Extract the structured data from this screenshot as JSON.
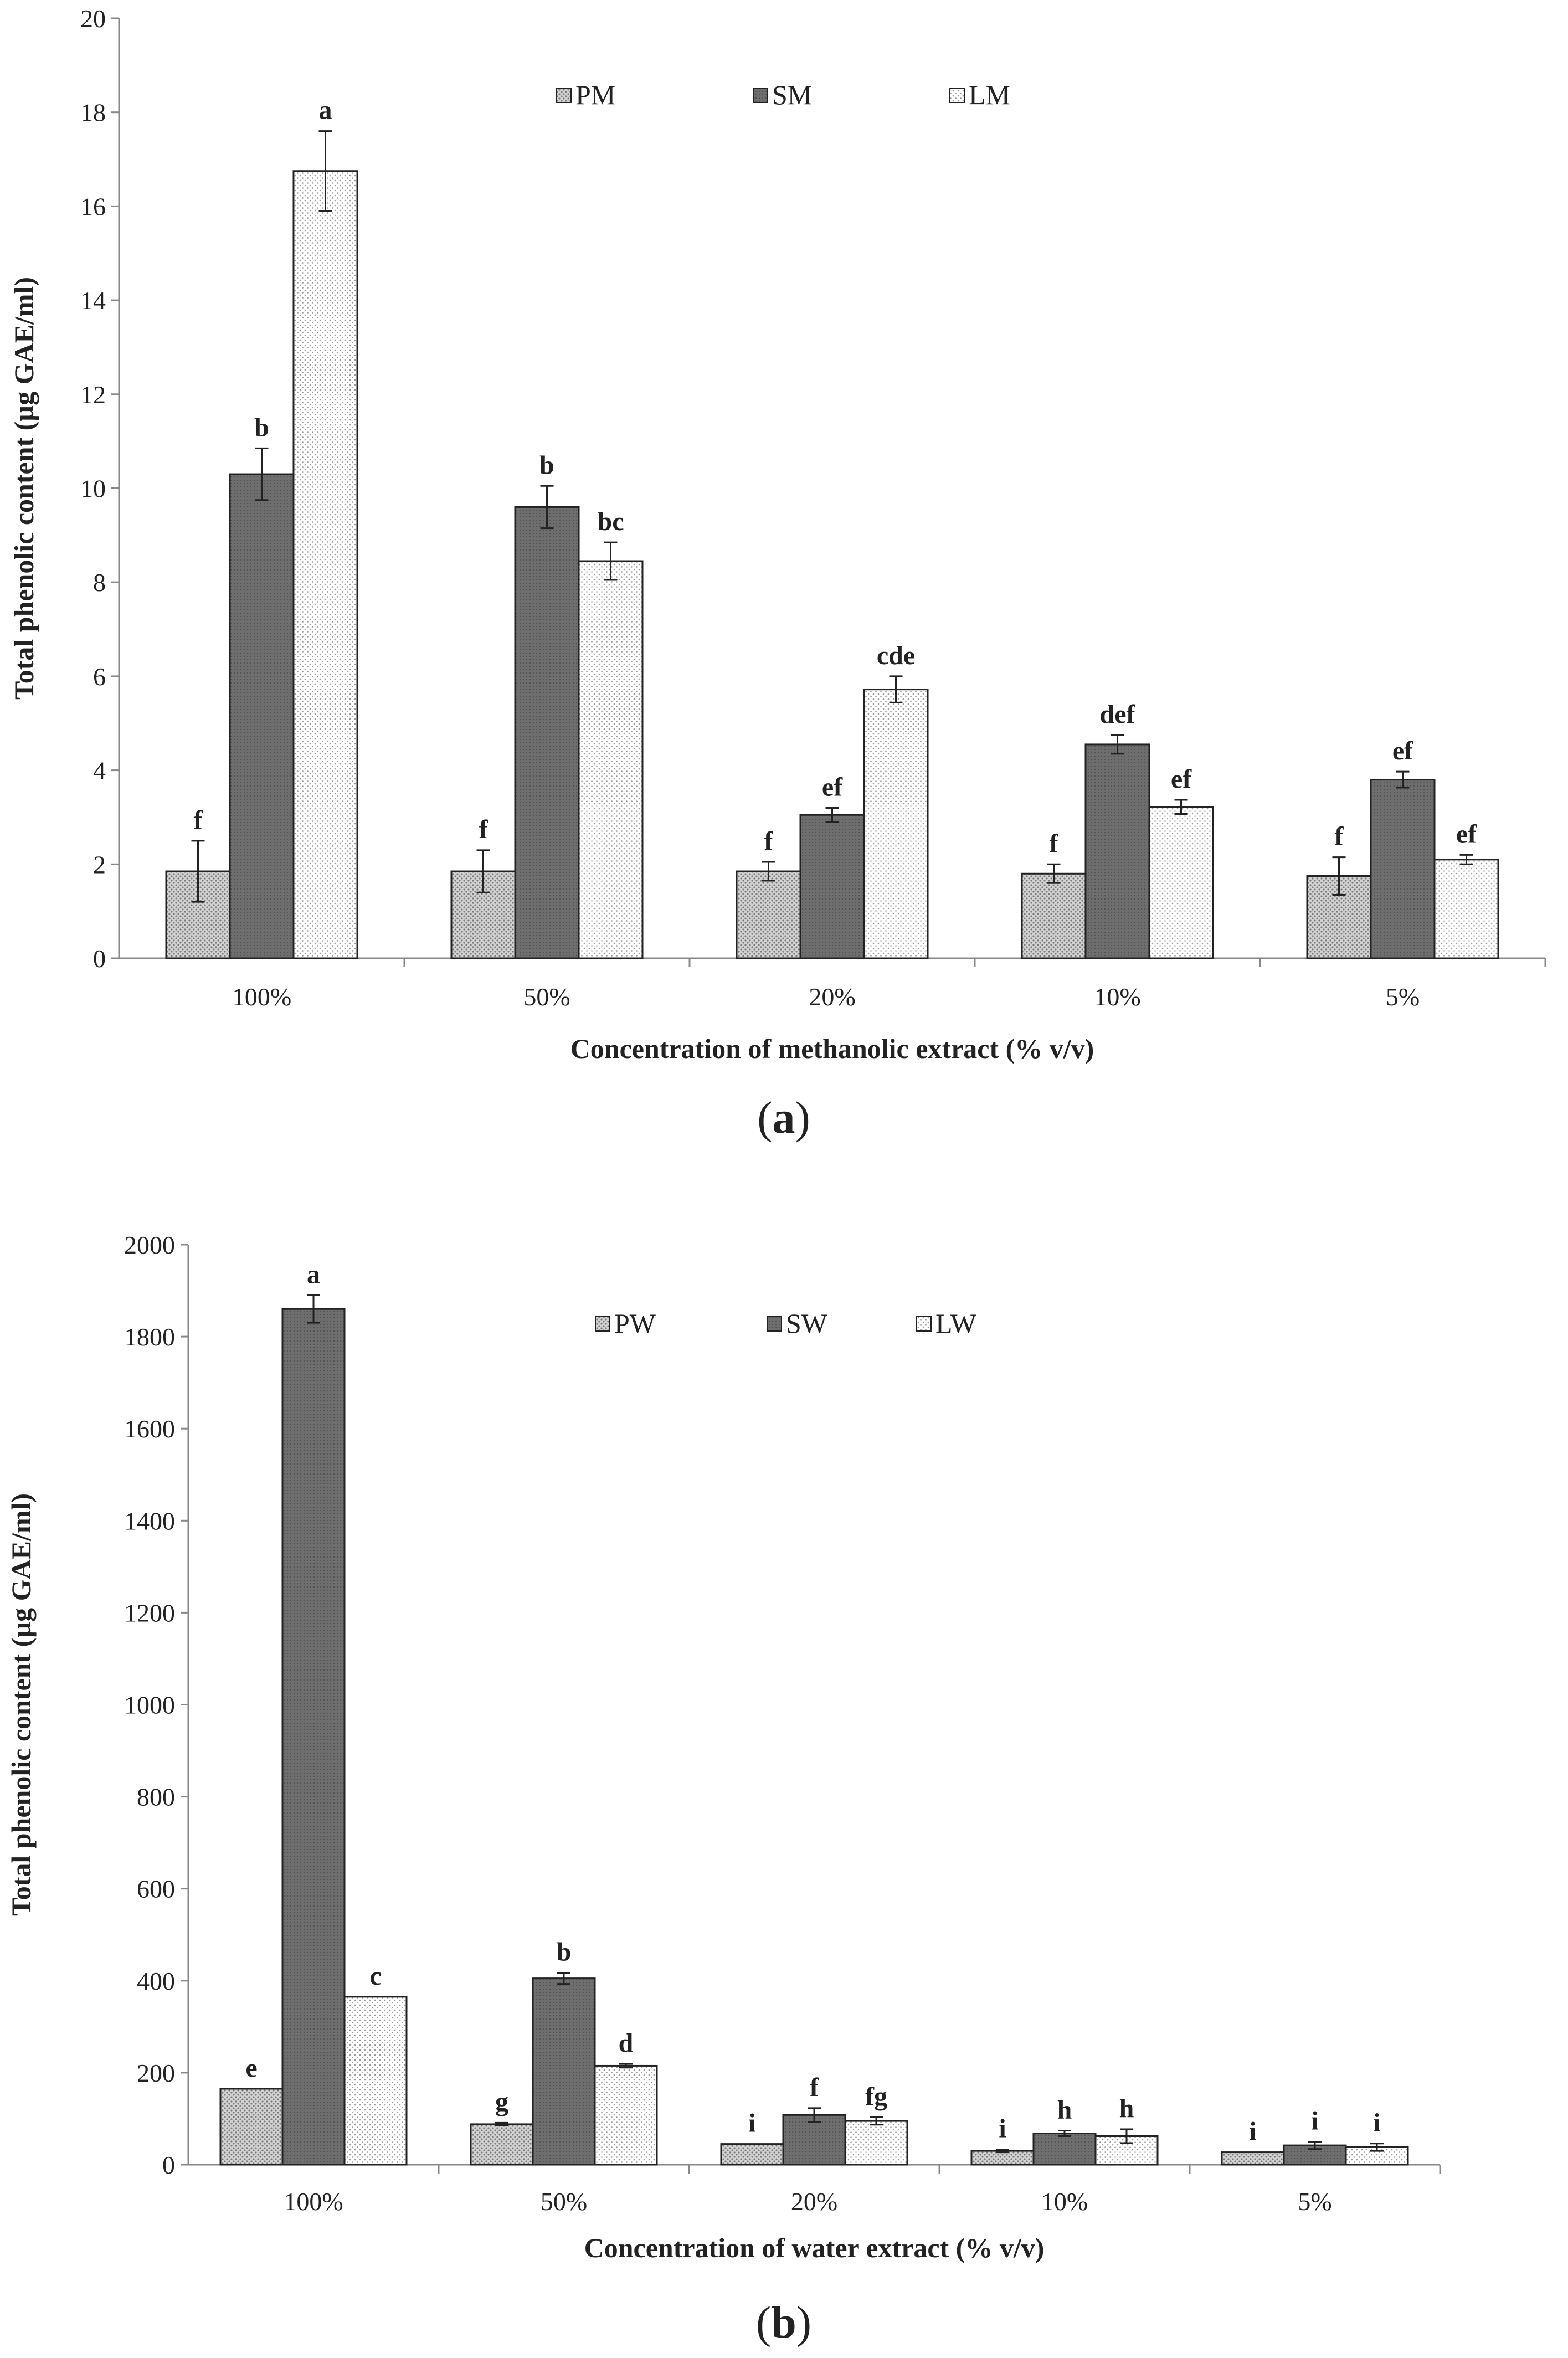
{
  "chart_data": [
    {
      "type": "bar",
      "panel_label": "a",
      "xlabel": "Concentration of methanolic extract (% v/v)",
      "ylabel": "Total phenolic content (µg GAE/ml)",
      "ylim": [
        0,
        20
      ],
      "yticks": [
        0,
        2,
        4,
        6,
        8,
        10,
        12,
        14,
        16,
        18,
        20
      ],
      "categories": [
        "100%",
        "50%",
        "20%",
        "10%",
        "5%"
      ],
      "legend_position": "top-center",
      "series": [
        {
          "name": "PM",
          "pattern": "dots",
          "values": [
            1.85,
            1.85,
            1.85,
            1.8,
            1.75
          ],
          "errors": [
            0.65,
            0.45,
            0.2,
            0.2,
            0.4
          ],
          "labels": [
            "f",
            "f",
            "f",
            "f",
            "f"
          ]
        },
        {
          "name": "SM",
          "pattern": "dark",
          "values": [
            10.3,
            9.6,
            3.05,
            4.55,
            3.8
          ],
          "errors": [
            0.55,
            0.45,
            0.15,
            0.2,
            0.17
          ],
          "labels": [
            "b",
            "b",
            "ef",
            "def",
            "ef"
          ]
        },
        {
          "name": "LM",
          "pattern": "light",
          "values": [
            16.75,
            8.45,
            5.72,
            3.22,
            2.1
          ],
          "errors": [
            0.85,
            0.4,
            0.28,
            0.15,
            0.1
          ],
          "labels": [
            "a",
            "bc",
            "cde",
            "ef",
            "ef"
          ]
        }
      ]
    },
    {
      "type": "bar",
      "panel_label": "b",
      "xlabel": "Concentration of water extract (% v/v)",
      "ylabel": "Total phenolic content (µg GAE/ml)",
      "ylim": [
        0,
        2000
      ],
      "yticks": [
        0,
        200,
        400,
        600,
        800,
        1000,
        1200,
        1400,
        1600,
        1800,
        2000
      ],
      "categories": [
        "100%",
        "50%",
        "20%",
        "10%",
        "5%"
      ],
      "legend_position": "top-center",
      "series": [
        {
          "name": "PW",
          "pattern": "dots",
          "values": [
            165,
            88,
            45,
            30,
            27
          ],
          "errors": [
            0,
            3,
            0,
            3,
            0
          ],
          "labels": [
            "e",
            "g",
            "i",
            "i",
            "i"
          ]
        },
        {
          "name": "SW",
          "pattern": "dark",
          "values": [
            1860,
            405,
            108,
            68,
            42
          ],
          "errors": [
            30,
            12,
            15,
            6,
            8
          ],
          "labels": [
            "a",
            "b",
            "f",
            "h",
            "i"
          ]
        },
        {
          "name": "LW",
          "pattern": "light",
          "values": [
            365,
            215,
            95,
            62,
            38
          ],
          "errors": [
            0,
            4,
            8,
            15,
            8
          ],
          "labels": [
            "c",
            "d",
            "fg",
            "h",
            "i"
          ]
        }
      ]
    }
  ]
}
